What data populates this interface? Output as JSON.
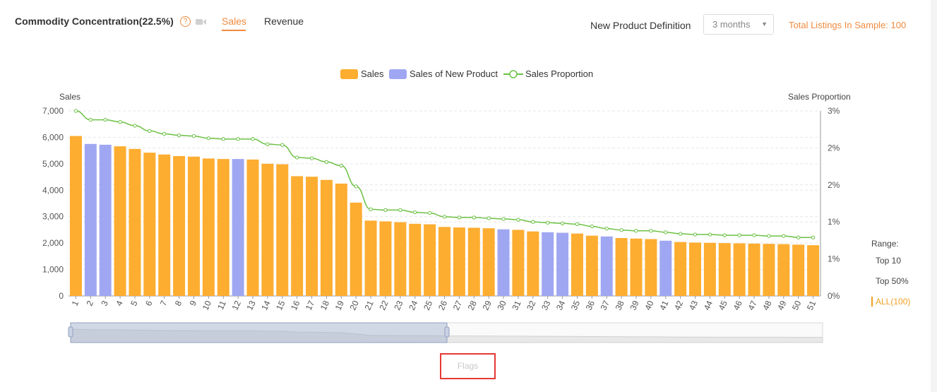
{
  "header": {
    "title": "Commodity Concentration(22.5%)",
    "help_icon": "?",
    "tabs": [
      "Sales",
      "Revenue"
    ],
    "active_tab": "Sales",
    "new_product_label": "New Product Definition",
    "new_product_value": "3 months",
    "total_listings": "Total Listings In Sample: 100"
  },
  "range": {
    "label": "Range:",
    "options": [
      "Top 10",
      "Top 50%",
      "ALL(100)"
    ],
    "active": "ALL(100)"
  },
  "flags_label": "Flags",
  "colors": {
    "sales": "#fdad30",
    "new_product": "#a0a7f2",
    "proportion": "#6cc144",
    "accent": "#f08a3e"
  },
  "chart_data": {
    "type": "bar",
    "legend": [
      "Sales",
      "Sales of New Product",
      "Sales Proportion"
    ],
    "ylabel": "Sales",
    "ylabel_right": "Sales Proportion",
    "ylim": [
      0,
      7000
    ],
    "yticks": [
      "0",
      "1,000",
      "2,000",
      "3,000",
      "4,000",
      "5,000",
      "6,000",
      "7,000"
    ],
    "yticks_right": [
      "0%",
      "1%",
      "1%",
      "2%",
      "2%",
      "3%"
    ],
    "categories": [
      "1",
      "2",
      "3",
      "4",
      "5",
      "6",
      "7",
      "8",
      "9",
      "10",
      "11",
      "12",
      "13",
      "14",
      "15",
      "16",
      "17",
      "18",
      "19",
      "20",
      "21",
      "22",
      "23",
      "24",
      "25",
      "26",
      "27",
      "28",
      "29",
      "30",
      "31",
      "32",
      "33",
      "34",
      "35",
      "36",
      "37",
      "38",
      "39",
      "40",
      "41",
      "42",
      "43",
      "44",
      "45",
      "46",
      "47",
      "48",
      "49",
      "50",
      "51"
    ],
    "sales": [
      6050,
      5750,
      5720,
      5660,
      5560,
      5420,
      5350,
      5290,
      5270,
      5200,
      5180,
      5180,
      5160,
      5000,
      4980,
      4530,
      4510,
      4390,
      4250,
      3530,
      2850,
      2820,
      2790,
      2730,
      2710,
      2610,
      2590,
      2580,
      2560,
      2520,
      2500,
      2440,
      2410,
      2390,
      2360,
      2280,
      2250,
      2190,
      2170,
      2150,
      2090,
      2040,
      2020,
      2010,
      2000,
      1990,
      1980,
      1970,
      1960,
      1940,
      1920
    ],
    "new_product_items": [
      2,
      3,
      12,
      30,
      33,
      34,
      37,
      41
    ],
    "proportion": [
      2.5,
      2.38,
      2.38,
      2.35,
      2.3,
      2.23,
      2.19,
      2.17,
      2.16,
      2.13,
      2.12,
      2.12,
      2.12,
      2.05,
      2.04,
      1.87,
      1.86,
      1.81,
      1.76,
      1.48,
      1.17,
      1.16,
      1.16,
      1.13,
      1.12,
      1.07,
      1.06,
      1.06,
      1.05,
      1.04,
      1.03,
      1.0,
      0.99,
      0.98,
      0.97,
      0.94,
      0.91,
      0.89,
      0.88,
      0.88,
      0.86,
      0.84,
      0.83,
      0.83,
      0.82,
      0.82,
      0.82,
      0.81,
      0.81,
      0.79,
      0.79
    ]
  }
}
